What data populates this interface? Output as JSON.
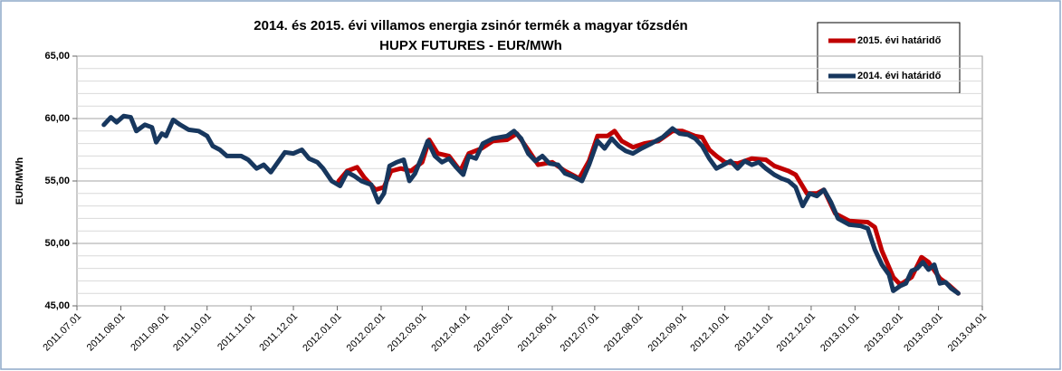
{
  "chart_data": {
    "type": "line",
    "title": "2014. és 2015. évi villamos energia zsinór termék a magyar tőzsdén",
    "subtitle": "HUPX FUTURES - EUR/MWh",
    "y_label": "EUR/MWh",
    "ylim": [
      45,
      65
    ],
    "yticks": [
      {
        "value": 45,
        "label": "45,00"
      },
      {
        "value": 50,
        "label": "50,00"
      },
      {
        "value": 55,
        "label": "55,00"
      },
      {
        "value": 60,
        "label": "60,00"
      },
      {
        "value": 65,
        "label": "65,00"
      }
    ],
    "yminorticks": [
      46,
      47,
      48,
      49,
      51,
      52,
      53,
      54,
      56,
      57,
      58,
      59,
      61,
      62,
      63,
      64
    ],
    "grid": true,
    "xlim": [
      "2011.07.01",
      "2013.04.01"
    ],
    "xticks": [
      "2011.07.01",
      "2011.08.01",
      "2011.09.01",
      "2011.10.01",
      "2011.11.01",
      "2011.12.01",
      "2012.01.01",
      "2012.02.01",
      "2012.03.01",
      "2012.04.01",
      "2012.05.01",
      "2012.06.01",
      "2012.07.01",
      "2012.08.01",
      "2012.09.01",
      "2012.10.01",
      "2012.11.01",
      "2012.12.01",
      "2013.01.01",
      "2013.02.01",
      "2013.03.01",
      "2013.04.01"
    ],
    "legend": "upper right",
    "series": [
      {
        "name": "2015. évi határidő",
        "color": "#c00000",
        "x": [
          "2012.01.02",
          "2012.01.08",
          "2012.01.15",
          "2012.01.20",
          "2012.01.28",
          "2012.02.03",
          "2012.02.08",
          "2012.02.15",
          "2012.02.22",
          "2012.03.01",
          "2012.03.06",
          "2012.03.12",
          "2012.03.20",
          "2012.03.28",
          "2012.04.03",
          "2012.04.12",
          "2012.04.20",
          "2012.04.30",
          "2012.05.07",
          "2012.05.15",
          "2012.05.22",
          "2012.06.01",
          "2012.06.10",
          "2012.06.20",
          "2012.06.27",
          "2012.07.03",
          "2012.07.10",
          "2012.07.15",
          "2012.07.20",
          "2012.07.28",
          "2012.08.05",
          "2012.08.15",
          "2012.08.25",
          "2012.09.01",
          "2012.09.10",
          "2012.09.15",
          "2012.09.20",
          "2012.09.25",
          "2012.10.01",
          "2012.10.10",
          "2012.10.20",
          "2012.10.30",
          "2012.11.05",
          "2012.11.15",
          "2012.11.20",
          "2012.11.28",
          "2012.12.05",
          "2012.12.10",
          "2012.12.18",
          "2012.12.28",
          "2013.01.10",
          "2013.01.15",
          "2013.01.20",
          "2013.01.28",
          "2013.02.02",
          "2013.02.10",
          "2013.02.17",
          "2013.02.22",
          "2013.03.02",
          "2013.03.08",
          "2013.03.15"
        ],
        "values": [
          55.0,
          55.8,
          56.1,
          55.3,
          54.3,
          54.5,
          55.8,
          56.0,
          55.8,
          56.5,
          58.3,
          57.2,
          57.0,
          55.8,
          57.2,
          57.6,
          58.2,
          58.3,
          58.8,
          57.5,
          56.3,
          56.5,
          55.8,
          55.2,
          56.6,
          58.6,
          58.6,
          59.0,
          58.2,
          57.7,
          58.0,
          58.2,
          59.0,
          59.0,
          58.6,
          58.5,
          57.5,
          57.0,
          56.5,
          56.4,
          56.8,
          56.7,
          56.2,
          55.8,
          55.5,
          54.0,
          54.0,
          54.3,
          52.4,
          51.8,
          51.7,
          51.3,
          49.4,
          47.3,
          46.7,
          47.3,
          48.9,
          48.5,
          47.2,
          46.7,
          46.0
        ]
      },
      {
        "name": "2014. évi határidő",
        "color": "#17375e",
        "x": [
          "2011.07.20",
          "2011.07.25",
          "2011.07.29",
          "2011.08.03",
          "2011.08.08",
          "2011.08.12",
          "2011.08.18",
          "2011.08.23",
          "2011.08.26",
          "2011.08.30",
          "2011.09.02",
          "2011.09.07",
          "2011.09.12",
          "2011.09.18",
          "2011.09.25",
          "2011.10.01",
          "2011.10.05",
          "2011.10.10",
          "2011.10.15",
          "2011.10.25",
          "2011.10.30",
          "2011.11.05",
          "2011.11.10",
          "2011.11.15",
          "2011.11.20",
          "2011.11.25",
          "2011.12.01",
          "2011.12.07",
          "2011.12.12",
          "2011.12.18",
          "2011.12.22",
          "2011.12.28",
          "2012.01.03",
          "2012.01.08",
          "2012.01.13",
          "2012.01.18",
          "2012.01.25",
          "2012.01.30",
          "2012.02.03",
          "2012.02.07",
          "2012.02.12",
          "2012.02.17",
          "2012.02.21",
          "2012.02.25",
          "2012.03.01",
          "2012.03.05",
          "2012.03.10",
          "2012.03.15",
          "2012.03.20",
          "2012.03.25",
          "2012.03.30",
          "2012.04.03",
          "2012.04.08",
          "2012.04.13",
          "2012.04.20",
          "2012.04.30",
          "2012.05.05",
          "2012.05.10",
          "2012.05.15",
          "2012.05.20",
          "2012.05.25",
          "2012.05.30",
          "2012.06.05",
          "2012.06.10",
          "2012.06.15",
          "2012.06.22",
          "2012.06.27",
          "2012.07.03",
          "2012.07.08",
          "2012.07.13",
          "2012.07.18",
          "2012.07.23",
          "2012.07.28",
          "2012.08.03",
          "2012.08.10",
          "2012.08.18",
          "2012.08.25",
          "2012.08.30",
          "2012.09.05",
          "2012.09.10",
          "2012.09.15",
          "2012.09.20",
          "2012.09.25",
          "2012.09.30",
          "2012.10.05",
          "2012.10.10",
          "2012.10.15",
          "2012.10.20",
          "2012.10.25",
          "2012.10.30",
          "2012.11.05",
          "2012.11.10",
          "2012.11.15",
          "2012.11.20",
          "2012.11.25",
          "2012.11.30",
          "2012.12.05",
          "2012.12.10",
          "2012.12.15",
          "2012.12.20",
          "2012.12.28",
          "2013.01.05",
          "2013.01.10",
          "2013.01.15",
          "2013.01.20",
          "2013.01.25",
          "2013.01.28",
          "2013.02.02",
          "2013.02.06",
          "2013.02.10",
          "2013.02.14",
          "2013.02.18",
          "2013.02.22",
          "2013.02.26",
          "2013.03.02",
          "2013.03.06",
          "2013.03.10",
          "2013.03.15"
        ],
        "values": [
          59.5,
          60.1,
          59.7,
          60.2,
          60.1,
          59.0,
          59.5,
          59.3,
          58.1,
          58.8,
          58.6,
          59.9,
          59.5,
          59.1,
          59.0,
          58.6,
          57.8,
          57.5,
          57.0,
          57.0,
          56.7,
          56.0,
          56.3,
          55.7,
          56.5,
          57.3,
          57.2,
          57.5,
          56.8,
          56.5,
          56.0,
          55.0,
          54.6,
          55.7,
          55.4,
          55.0,
          54.7,
          53.3,
          54.0,
          56.2,
          56.5,
          56.7,
          55.0,
          55.6,
          57.0,
          58.2,
          57.0,
          56.5,
          56.8,
          56.1,
          55.5,
          57.0,
          56.8,
          58.0,
          58.4,
          58.6,
          59.0,
          58.4,
          57.2,
          56.6,
          57.0,
          56.4,
          56.3,
          55.6,
          55.4,
          55.0,
          56.3,
          58.2,
          57.6,
          58.4,
          57.8,
          57.4,
          57.2,
          57.6,
          58.0,
          58.5,
          59.2,
          58.8,
          58.7,
          58.4,
          57.8,
          56.8,
          56.0,
          56.3,
          56.6,
          56.0,
          56.6,
          56.3,
          56.5,
          56.0,
          55.5,
          55.2,
          55.0,
          54.5,
          53.0,
          54.0,
          53.8,
          54.3,
          53.3,
          52.0,
          51.5,
          51.4,
          51.2,
          49.5,
          48.3,
          47.5,
          46.2,
          46.6,
          46.8,
          47.8,
          48.0,
          48.5,
          47.9,
          48.3,
          46.8,
          46.9,
          46.4,
          46.0
        ]
      }
    ]
  }
}
